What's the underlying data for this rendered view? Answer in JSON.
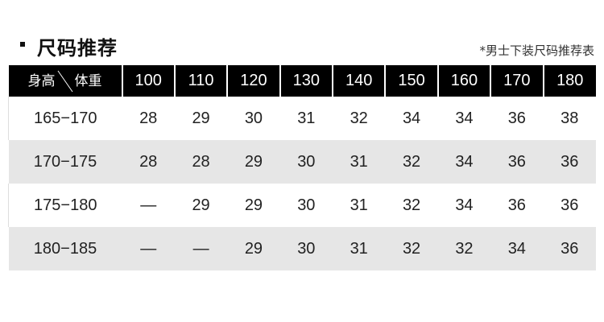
{
  "title": "尺码推荐",
  "note": "*男士下装尺码推荐表",
  "table": {
    "corner": {
      "row_label": "身高",
      "col_label": "体重"
    },
    "columns": [
      "100",
      "110",
      "120",
      "130",
      "140",
      "150",
      "160",
      "170",
      "180"
    ],
    "rows": [
      {
        "height": "165−170",
        "sizes": [
          "28",
          "29",
          "30",
          "31",
          "32",
          "34",
          "34",
          "36",
          "38"
        ]
      },
      {
        "height": "170−175",
        "sizes": [
          "28",
          "28",
          "29",
          "30",
          "31",
          "32",
          "34",
          "36",
          "36"
        ]
      },
      {
        "height": "175−180",
        "sizes": [
          "—",
          "29",
          "29",
          "30",
          "31",
          "32",
          "34",
          "36",
          "36"
        ]
      },
      {
        "height": "180−185",
        "sizes": [
          "—",
          "—",
          "29",
          "30",
          "31",
          "32",
          "32",
          "34",
          "36"
        ]
      }
    ]
  }
}
